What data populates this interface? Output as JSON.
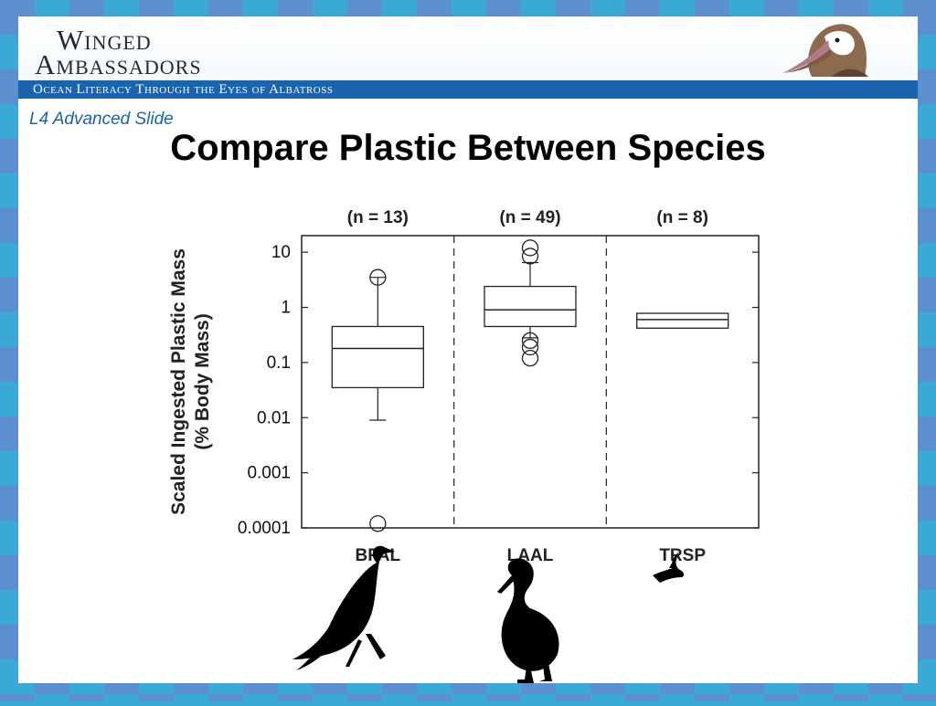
{
  "header": {
    "logo_line1": "Winged",
    "logo_line2": "Ambassadors",
    "tagline": "Ocean Literacy Through the Eyes of Albatross"
  },
  "slide": {
    "level_label": "L4 Advanced Slide",
    "title": "Compare Plastic Between Species"
  },
  "colors": {
    "frame": "#3aa9d6",
    "header_band": "#1b63ad",
    "level_text": "#1b63ad"
  },
  "icons": [
    "albatross-head-icon",
    "bfal-silhouette-icon",
    "laal-silhouette-icon",
    "trsp-silhouette-icon"
  ],
  "chart_data": {
    "type": "boxplot",
    "ylabel": "Scaled Ingested Plastic Mass (% Body Mass)",
    "yscale": "log",
    "ylim": [
      0.0001,
      20
    ],
    "ytick_values": [
      10,
      1,
      0.1,
      0.01,
      0.001,
      0.0001
    ],
    "ytick_labels": [
      "10",
      "1",
      "0.1",
      "0.01",
      "0.001",
      "0.0001"
    ],
    "grid": false,
    "categories": [
      "BFAL",
      "LAAL",
      "TRSP"
    ],
    "n_labels": [
      "(n = 13)",
      "(n = 49)",
      "(n = 8)"
    ],
    "boxes": [
      {
        "q1": 0.035,
        "median": 0.18,
        "q3": 0.45,
        "whisker_low": 0.009,
        "whisker_high": 3.5,
        "outliers": [
          3.5,
          0.00012
        ]
      },
      {
        "q1": 0.45,
        "median": 0.9,
        "q3": 2.4,
        "whisker_low": 0.28,
        "whisker_high": 6.5,
        "outliers": [
          12,
          8.5,
          0.25,
          0.19,
          0.12
        ]
      },
      {
        "q1": 0.42,
        "median": 0.6,
        "q3": 0.78,
        "whisker_low": null,
        "whisker_high": null,
        "outliers": []
      }
    ]
  }
}
